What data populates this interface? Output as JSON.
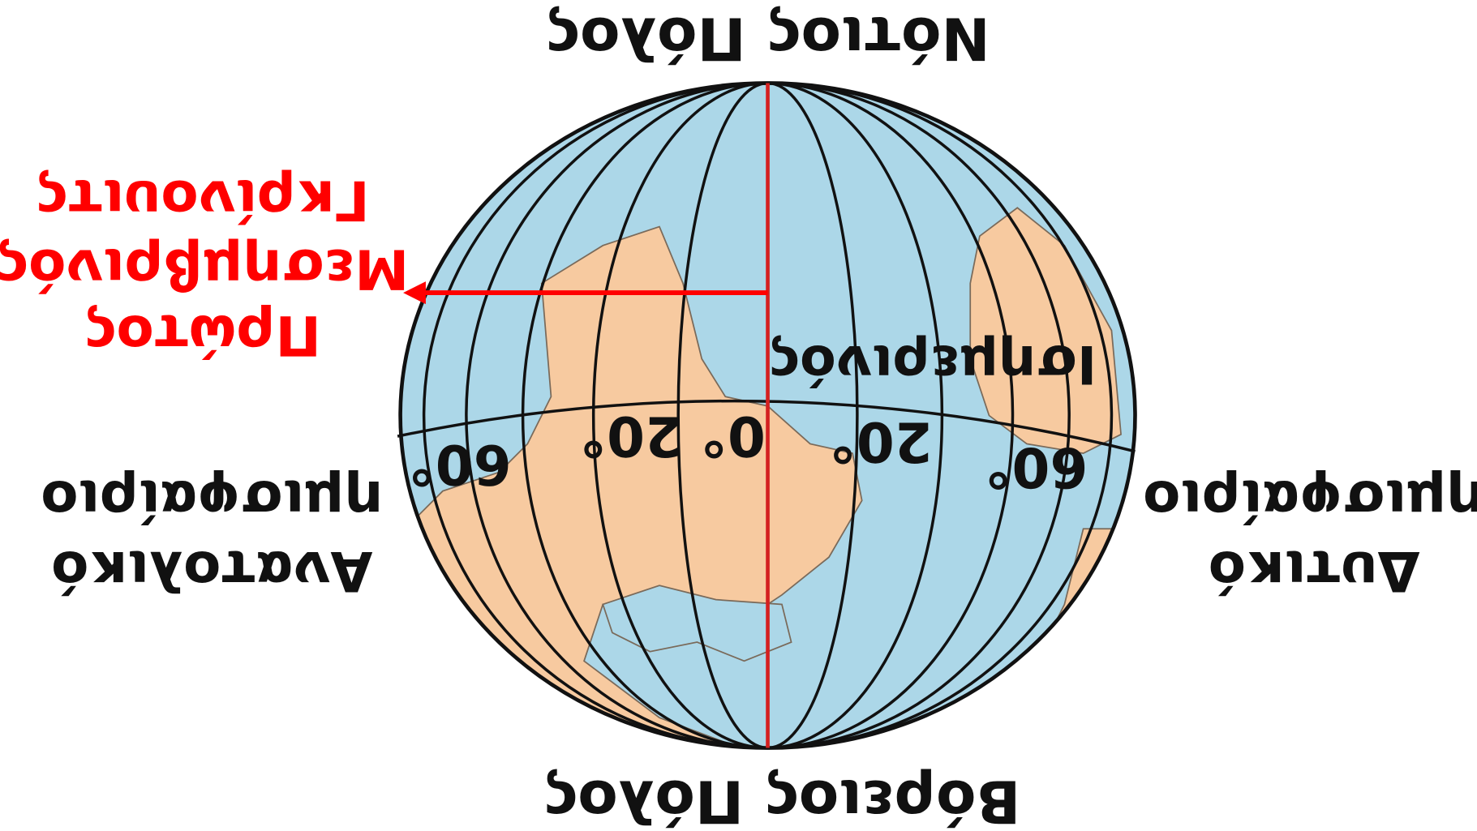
{
  "north_pole": "Βόρειος Πόλος",
  "south_pole": "Νότιος Πόλος",
  "prime_meridian": [
    "Πρώτος",
    "Μεσημβρινός",
    "Γκρίνουιτς"
  ],
  "equator": "Ισημερινός",
  "eastern_hemisphere": [
    "Ανατολικό",
    "ημισφαίριο"
  ],
  "western_hemisphere": [
    "Δυτικό",
    "ημισφαίριο"
  ],
  "degree_labels": [
    "0°",
    "20°",
    "20°",
    "60°",
    "60°"
  ]
}
